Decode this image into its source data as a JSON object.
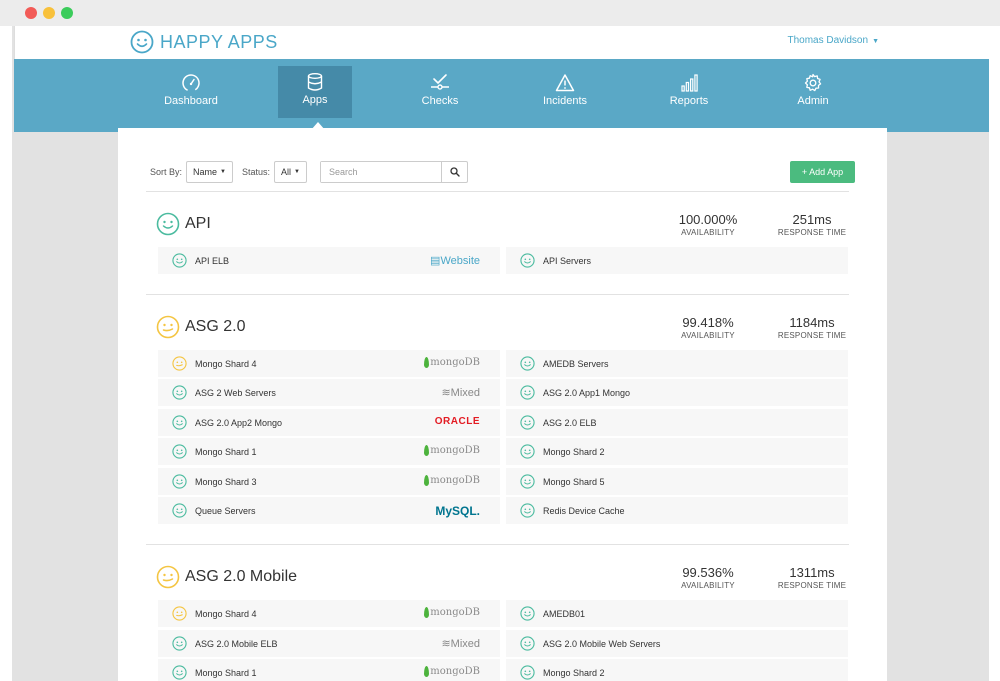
{
  "app": {
    "name": "HAPPY APPS",
    "user": "Thomas Davidson"
  },
  "colors": {
    "accent": "#5aa8c6",
    "nav_active": "#458aa8",
    "happy": "#4bbb9f",
    "warning": "#f4c542",
    "add_button": "#4bbb7f"
  },
  "nav": [
    {
      "label": "Dashboard",
      "icon": "gauge-icon",
      "active": false
    },
    {
      "label": "Apps",
      "icon": "database-icon",
      "active": true
    },
    {
      "label": "Checks",
      "icon": "checks-icon",
      "active": false
    },
    {
      "label": "Incidents",
      "icon": "warning-triangle-icon",
      "active": false
    },
    {
      "label": "Reports",
      "icon": "bar-chart-icon",
      "active": false
    },
    {
      "label": "Admin",
      "icon": "gear-icon",
      "active": false
    }
  ],
  "toolbar": {
    "sort_label": "Sort By:",
    "sort_value": "Name",
    "status_label": "Status:",
    "status_value": "All",
    "search_placeholder": "Search",
    "add_label": "+ Add App"
  },
  "groups": [
    {
      "name": "API",
      "status": "happy",
      "availability": "100.000%",
      "availability_caption": "AVAILABILITY",
      "response": "251ms",
      "response_caption": "RESPONSE TIME",
      "checks": [
        {
          "name": "API ELB",
          "status": "happy",
          "tag": "website",
          "tag_label": "Website"
        },
        {
          "name": "API Servers",
          "status": "happy",
          "tag": "",
          "tag_label": ""
        }
      ]
    },
    {
      "name": "ASG 2.0",
      "status": "warning",
      "availability": "99.418%",
      "availability_caption": "AVAILABILITY",
      "response": "1184ms",
      "response_caption": "RESPONSE TIME",
      "checks": [
        {
          "name": "Mongo Shard 4",
          "status": "warning",
          "tag": "mongo",
          "tag_label": "mongoDB"
        },
        {
          "name": "AMEDB Servers",
          "status": "happy",
          "tag": "",
          "tag_label": ""
        },
        {
          "name": "ASG 2 Web Servers",
          "status": "happy",
          "tag": "mixed",
          "tag_label": "Mixed"
        },
        {
          "name": "ASG 2.0 App1 Mongo",
          "status": "happy",
          "tag": "",
          "tag_label": ""
        },
        {
          "name": "ASG 2.0 App2 Mongo",
          "status": "happy",
          "tag": "oracle",
          "tag_label": "ORACLE"
        },
        {
          "name": "ASG 2.0 ELB",
          "status": "happy",
          "tag": "",
          "tag_label": ""
        },
        {
          "name": "Mongo Shard 1",
          "status": "happy",
          "tag": "mongo",
          "tag_label": "mongoDB"
        },
        {
          "name": "Mongo Shard 2",
          "status": "happy",
          "tag": "",
          "tag_label": ""
        },
        {
          "name": "Mongo Shard 3",
          "status": "happy",
          "tag": "mongo",
          "tag_label": "mongoDB"
        },
        {
          "name": "Mongo Shard 5",
          "status": "happy",
          "tag": "",
          "tag_label": ""
        },
        {
          "name": "Queue Servers",
          "status": "happy",
          "tag": "mysql",
          "tag_label": "MySQL."
        },
        {
          "name": "Redis Device Cache",
          "status": "happy",
          "tag": "",
          "tag_label": ""
        }
      ]
    },
    {
      "name": "ASG 2.0 Mobile",
      "status": "warning",
      "availability": "99.536%",
      "availability_caption": "AVAILABILITY",
      "response": "1311ms",
      "response_caption": "RESPONSE TIME",
      "checks": [
        {
          "name": "Mongo Shard 4",
          "status": "warning",
          "tag": "mongo",
          "tag_label": "mongoDB"
        },
        {
          "name": "AMEDB01",
          "status": "happy",
          "tag": "",
          "tag_label": ""
        },
        {
          "name": "ASG 2.0 Mobile ELB",
          "status": "happy",
          "tag": "mixed",
          "tag_label": "Mixed"
        },
        {
          "name": "ASG 2.0 Mobile Web Servers",
          "status": "happy",
          "tag": "",
          "tag_label": ""
        },
        {
          "name": "Mongo Shard 1",
          "status": "happy",
          "tag": "mongo",
          "tag_label": "mongoDB"
        },
        {
          "name": "Mongo Shard 2",
          "status": "happy",
          "tag": "",
          "tag_label": ""
        }
      ]
    }
  ]
}
